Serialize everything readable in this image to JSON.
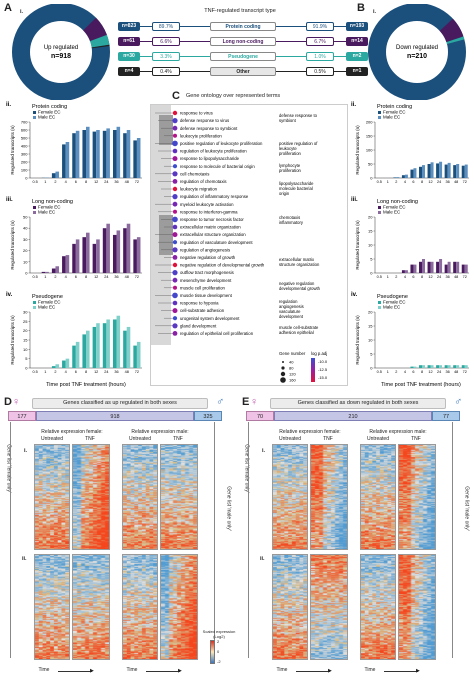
{
  "panels": {
    "A": "A",
    "A_i": "i.",
    "B": "B",
    "B_i": "i.",
    "C": "C",
    "D": "D",
    "E": "E",
    "ii": "ii.",
    "iii": "iii.",
    "iv": "iv."
  },
  "header": {
    "title": "TNF-regulated transcript type"
  },
  "donut_up": {
    "label": "Up regulated",
    "n": "n=918"
  },
  "donut_down": {
    "label": "Down regulated",
    "n": "n=210"
  },
  "transcript_table": [
    {
      "type": "Protein coding",
      "up_n": "n=823",
      "up_pct": "89.7%",
      "down_pct": "91.9%",
      "down_n": "n=193",
      "color": "#1b4f7c"
    },
    {
      "type": "Long non-coding",
      "up_n": "n=61",
      "up_pct": "6.6%",
      "down_pct": "6.7%",
      "down_n": "n=14",
      "color": "#4a1a5e"
    },
    {
      "type": "Pseudogene",
      "up_n": "n=30",
      "up_pct": "3.3%",
      "down_pct": "1.0%",
      "down_n": "n=2",
      "color": "#2ba8a0"
    },
    {
      "type": "Other",
      "up_n": "n=4",
      "up_pct": "0.4%",
      "down_pct": "0.5%",
      "down_n": "n=1",
      "color": "#222222"
    }
  ],
  "legend": {
    "female": "Female EC",
    "male": "Male EC"
  },
  "bar_panels": {
    "protein": "Protein coding",
    "lnc": "Long non-coding",
    "pseudo": "Pseudogene",
    "ylabel": "Regulated transcripts (n)",
    "xlabel": "Time post TNF treatment (hours)"
  },
  "go_panel": {
    "title": "Gene ontology over represented terms",
    "terms": [
      "response to virus",
      "defense response to virus",
      "defense response to symbiont",
      "leukocyte proliferation",
      "positive regulation of leukocyte proliferation",
      "regulation of leukocyte proliferation",
      "response to lipopolysaccharide",
      "response to molecule of bacterial origin",
      "cell chemotaxis",
      "regulation of chemotaxis",
      "leukocyte migration",
      "regulation of inflammatory response",
      "myeloid leukocyte activation",
      "response to interferon-gamma",
      "response to tumor necrosis factor",
      "extracellular matrix organization",
      "extracellular structure organization",
      "regulation of vasculature development",
      "regulation of angiogenesis",
      "negative regulation of growth",
      "negative regulation of developmental growth",
      "outflow tract morphogenesis",
      "mesenchyme development",
      "muscle cell proliferation",
      "muscle tissue development",
      "response to hypoxia",
      "cell-substrate adhesion",
      "urogenital system development",
      "gland development",
      "regulation of epithelial cell proliferation"
    ],
    "clusters": [
      "defense response to symbiont",
      "positive regulation of leukocyte proliferation",
      "lymphocyte proliferation",
      "lipopolysaccharide molecule bacterial origin",
      "chemotaxis inflammatory",
      "extracellular matrix structure organization",
      "negative regulation developmental growth",
      "regulation angiogenesis vasculature development",
      "muscle cell-substrate adhesion epithelial"
    ],
    "size_legend_title": "Gene number",
    "size_legend": [
      "40",
      "80",
      "120",
      "160"
    ],
    "color_legend_title": "log p.adj",
    "color_legend": [
      "-10.0",
      "-12.5",
      "-15.0"
    ]
  },
  "panel_D": {
    "banner": "Genes classified as up regulated in both sexes",
    "female_only": "177",
    "shared": "918",
    "male_only": "325",
    "col_female": "Relative expression female:",
    "col_male": "Relative expression male:",
    "untreated": "Untreated",
    "tnf": "TNF",
    "side_left": "Gene list 'female only'",
    "side_right": "Gene list 'male only'",
    "time": "Time",
    "scale_title": "Scaled expression (Log2)",
    "scale_ticks": [
      "2",
      "0",
      "-2"
    ]
  },
  "panel_E": {
    "banner": "Genes classified as down regulated in both sexes",
    "female_only": "70",
    "shared": "210",
    "male_only": "77",
    "col_female": "Relative expression female:",
    "col_male": "Relative expression male:",
    "untreated": "Untreated",
    "tnf": "TNF",
    "side_left": "Gene list 'female only'",
    "side_right": "Gene list 'male only'",
    "time": "Time"
  },
  "chart_data": [
    {
      "type": "bar",
      "title": "Protein coding (up regulated)",
      "categories": [
        "0.5",
        "1",
        "2",
        "4",
        "6",
        "8",
        "12",
        "24",
        "36",
        "48",
        "72"
      ],
      "series": [
        {
          "name": "Female EC",
          "values": [
            0,
            2,
            60,
            420,
            560,
            600,
            580,
            590,
            600,
            560,
            470
          ]
        },
        {
          "name": "Male EC",
          "values": [
            0,
            5,
            80,
            450,
            590,
            640,
            600,
            620,
            640,
            600,
            500
          ]
        }
      ],
      "ylim": [
        0,
        700
      ],
      "yticks": [
        "0",
        "100",
        "200",
        "300",
        "400",
        "500",
        "600",
        "700"
      ]
    },
    {
      "type": "bar",
      "title": "Long non-coding (up regulated)",
      "categories": [
        "0.5",
        "1",
        "2",
        "4",
        "6",
        "8",
        "12",
        "24",
        "36",
        "48",
        "72"
      ],
      "series": [
        {
          "name": "Female EC",
          "values": [
            0,
            1,
            4,
            15,
            26,
            32,
            26,
            40,
            34,
            40,
            30
          ]
        },
        {
          "name": "Male EC",
          "values": [
            0,
            1,
            6,
            16,
            30,
            36,
            30,
            44,
            38,
            44,
            32
          ]
        }
      ],
      "ylim": [
        0,
        50
      ],
      "yticks": [
        "0",
        "10",
        "20",
        "30",
        "40",
        "50"
      ]
    },
    {
      "type": "bar",
      "title": "Pseudogene (up regulated)",
      "categories": [
        "0.5",
        "1",
        "2",
        "4",
        "6",
        "8",
        "12",
        "24",
        "36",
        "48",
        "72"
      ],
      "series": [
        {
          "name": "Female EC",
          "values": [
            0,
            0,
            1,
            4,
            12,
            18,
            22,
            24,
            26,
            20,
            12
          ]
        },
        {
          "name": "Male EC",
          "values": [
            0,
            0,
            2,
            5,
            14,
            20,
            24,
            26,
            28,
            22,
            14
          ]
        }
      ],
      "ylim": [
        0,
        30
      ],
      "yticks": [
        "0",
        "5",
        "10",
        "15",
        "20",
        "25",
        "30"
      ]
    },
    {
      "type": "bar",
      "title": "Protein coding (down regulated)",
      "categories": [
        "0.5",
        "1",
        "2",
        "4",
        "6",
        "8",
        "12",
        "24",
        "36",
        "48",
        "72"
      ],
      "series": [
        {
          "name": "Female EC",
          "values": [
            0,
            0,
            2,
            10,
            30,
            40,
            50,
            52,
            48,
            46,
            44
          ]
        },
        {
          "name": "Male EC",
          "values": [
            0,
            0,
            3,
            12,
            35,
            46,
            56,
            58,
            54,
            50,
            48
          ]
        }
      ],
      "ylim": [
        0,
        200
      ],
      "yticks": [
        "0",
        "50",
        "100",
        "150",
        "200"
      ]
    },
    {
      "type": "bar",
      "title": "Long non-coding (down regulated)",
      "categories": [
        "0.5",
        "1",
        "2",
        "4",
        "6",
        "8",
        "12",
        "24",
        "36",
        "48",
        "72"
      ],
      "series": [
        {
          "name": "Female EC",
          "values": [
            0,
            0,
            0,
            1,
            3,
            4,
            4,
            4,
            3,
            4,
            3
          ]
        },
        {
          "name": "Male EC",
          "values": [
            0,
            0,
            0,
            1,
            3,
            5,
            4,
            5,
            4,
            4,
            3
          ]
        }
      ],
      "ylim": [
        0,
        20
      ],
      "yticks": [
        "0",
        "5",
        "10",
        "15",
        "20"
      ]
    },
    {
      "type": "bar",
      "title": "Pseudogene (down regulated)",
      "categories": [
        "0.5",
        "1",
        "2",
        "4",
        "6",
        "8",
        "12",
        "24",
        "36",
        "48",
        "72"
      ],
      "series": [
        {
          "name": "Female EC",
          "values": [
            0,
            0,
            0,
            0,
            0.5,
            1,
            1,
            1,
            1,
            1,
            1
          ]
        },
        {
          "name": "Male EC",
          "values": [
            0,
            0,
            0,
            0,
            0.5,
            1,
            1,
            1,
            1,
            1,
            1
          ]
        }
      ],
      "ylim": [
        0,
        20
      ],
      "yticks": [
        "0",
        "5",
        "10",
        "15",
        "20"
      ]
    }
  ]
}
